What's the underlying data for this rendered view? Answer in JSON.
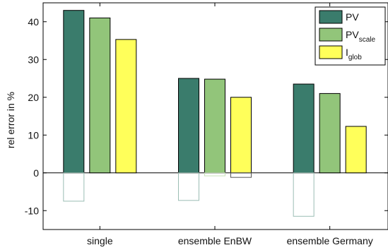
{
  "chart_data": {
    "type": "bar",
    "ylabel": "rel error in %",
    "ylim": [
      -15,
      45
    ],
    "yticks": [
      -10,
      0,
      10,
      20,
      30,
      40
    ],
    "categories": [
      "single",
      "ensemble EnBW",
      "ensemble Germany"
    ],
    "series": [
      {
        "name": "PV",
        "values": [
          43,
          25,
          23.5
        ],
        "negative_values": [
          -7.5,
          -7.3,
          -11.5
        ],
        "color": "#3a7c6c",
        "negative_color": "#9bbdb4"
      },
      {
        "name": "PV",
        "name_subscript": "scale",
        "values": [
          41,
          24.8,
          21
        ],
        "negative_values": [
          0,
          -0.8,
          0
        ],
        "color": "#92c57a",
        "negative_color": "#c8e2ba"
      },
      {
        "name": "I",
        "name_subscript": "glob",
        "values": [
          35.3,
          20,
          12.3
        ],
        "negative_values": [
          0,
          -1.2,
          0
        ],
        "color": "#ffff5a",
        "negative_color": "#555555"
      }
    ],
    "zero_line": true,
    "grid": false,
    "legend_position": "top-right"
  }
}
